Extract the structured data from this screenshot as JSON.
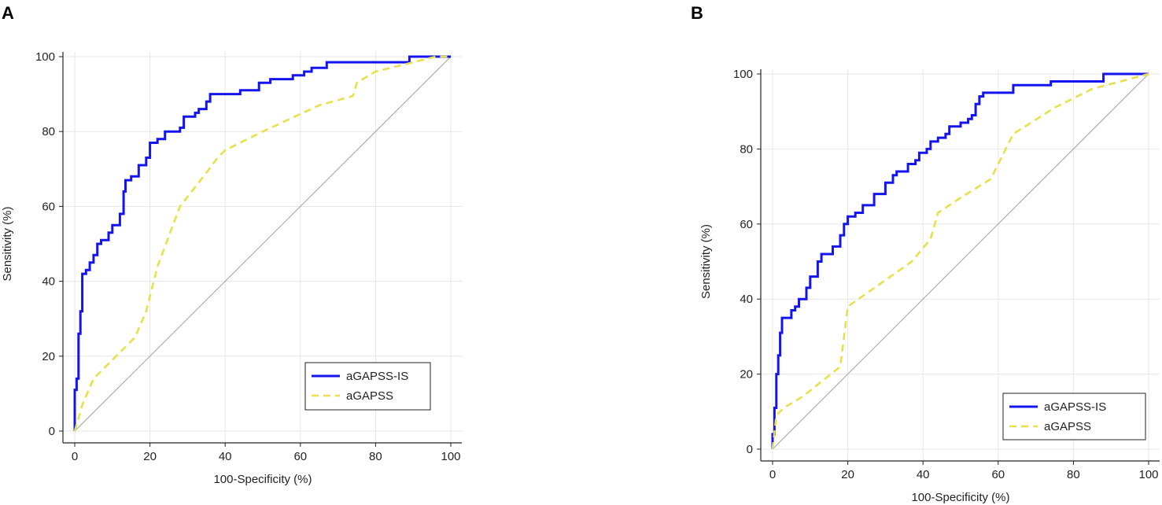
{
  "chart_data": [
    {
      "panel": "A",
      "type": "line",
      "title": "",
      "xlabel": "100-Specificity (%)",
      "ylabel": "Sensitivity (%)",
      "xlim": [
        0,
        100
      ],
      "ylim": [
        0,
        100
      ],
      "xticks": [
        0,
        20,
        40,
        60,
        80,
        100
      ],
      "yticks": [
        0,
        20,
        40,
        60,
        80,
        100
      ],
      "grid": true,
      "legend_position": "bottom-right",
      "reference_line": "diagonal",
      "series": [
        {
          "name": "aGAPSS-IS",
          "color": "#1414f0",
          "style": "solid",
          "points": [
            [
              0,
              0
            ],
            [
              0,
              11
            ],
            [
              0.5,
              11
            ],
            [
              0.5,
              14
            ],
            [
              1,
              14
            ],
            [
              1,
              26
            ],
            [
              1.5,
              26
            ],
            [
              1.5,
              32
            ],
            [
              2,
              32
            ],
            [
              2,
              42
            ],
            [
              3,
              42
            ],
            [
              3,
              43
            ],
            [
              4,
              43
            ],
            [
              4,
              45
            ],
            [
              5,
              45
            ],
            [
              5,
              47
            ],
            [
              6,
              47
            ],
            [
              6,
              50
            ],
            [
              7,
              50
            ],
            [
              7,
              51
            ],
            [
              9,
              51
            ],
            [
              9,
              53
            ],
            [
              10,
              53
            ],
            [
              10,
              55
            ],
            [
              12,
              55
            ],
            [
              12,
              58
            ],
            [
              13,
              58
            ],
            [
              13,
              64
            ],
            [
              13.5,
              64
            ],
            [
              13.5,
              67
            ],
            [
              15,
              67
            ],
            [
              15,
              68
            ],
            [
              17,
              68
            ],
            [
              17,
              71
            ],
            [
              19,
              71
            ],
            [
              19,
              73
            ],
            [
              20,
              73
            ],
            [
              20,
              77
            ],
            [
              22,
              77
            ],
            [
              22,
              78
            ],
            [
              24,
              78
            ],
            [
              24,
              80
            ],
            [
              28,
              80
            ],
            [
              28,
              81
            ],
            [
              29,
              81
            ],
            [
              29,
              84
            ],
            [
              32,
              84
            ],
            [
              32,
              85
            ],
            [
              33,
              85
            ],
            [
              33,
              86
            ],
            [
              35,
              86
            ],
            [
              35,
              88
            ],
            [
              36,
              88
            ],
            [
              36,
              90
            ],
            [
              44,
              90
            ],
            [
              44,
              91
            ],
            [
              49,
              91
            ],
            [
              49,
              93
            ],
            [
              52,
              93
            ],
            [
              52,
              94
            ],
            [
              58,
              94
            ],
            [
              58,
              95
            ],
            [
              61,
              95
            ],
            [
              61,
              96
            ],
            [
              63,
              96
            ],
            [
              63,
              97
            ],
            [
              67,
              97
            ],
            [
              67,
              98.5
            ],
            [
              89,
              98.5
            ],
            [
              89,
              100
            ],
            [
              100,
              100
            ]
          ]
        },
        {
          "name": "aGAPSS",
          "color": "#e8e04a",
          "style": "dashed",
          "points": [
            [
              0,
              0
            ],
            [
              2,
              7
            ],
            [
              5,
              14
            ],
            [
              10,
              19
            ],
            [
              16,
              25
            ],
            [
              19,
              32
            ],
            [
              22,
              44
            ],
            [
              28,
              60
            ],
            [
              35,
              69
            ],
            [
              38,
              73
            ],
            [
              40,
              75
            ],
            [
              50,
              80
            ],
            [
              65,
              87
            ],
            [
              74,
              89.5
            ],
            [
              75,
              93
            ],
            [
              80,
              96
            ],
            [
              96,
              100
            ],
            [
              100,
              100
            ]
          ]
        }
      ]
    },
    {
      "panel": "B",
      "type": "line",
      "title": "",
      "xlabel": "100-Specificity (%)",
      "ylabel": "Sensitivity (%)",
      "xlim": [
        0,
        100
      ],
      "ylim": [
        0,
        100
      ],
      "xticks": [
        0,
        20,
        40,
        60,
        80,
        100
      ],
      "yticks": [
        0,
        20,
        40,
        60,
        80,
        100
      ],
      "grid": true,
      "legend_position": "bottom-right",
      "reference_line": "diagonal",
      "series": [
        {
          "name": "aGAPSS-IS",
          "color": "#1414f0",
          "style": "solid",
          "points": [
            [
              0,
              0
            ],
            [
              0,
              4
            ],
            [
              0.5,
              4
            ],
            [
              0.5,
              11
            ],
            [
              1,
              11
            ],
            [
              1,
              20
            ],
            [
              1.5,
              20
            ],
            [
              1.5,
              25
            ],
            [
              2,
              25
            ],
            [
              2,
              31
            ],
            [
              2.5,
              31
            ],
            [
              2.5,
              35
            ],
            [
              5,
              35
            ],
            [
              5,
              37
            ],
            [
              6,
              37
            ],
            [
              6,
              38
            ],
            [
              7,
              38
            ],
            [
              7,
              40
            ],
            [
              9,
              40
            ],
            [
              9,
              43
            ],
            [
              10,
              43
            ],
            [
              10,
              46
            ],
            [
              12,
              46
            ],
            [
              12,
              50
            ],
            [
              13,
              50
            ],
            [
              13,
              52
            ],
            [
              16,
              52
            ],
            [
              16,
              54
            ],
            [
              18,
              54
            ],
            [
              18,
              57
            ],
            [
              19,
              57
            ],
            [
              19,
              60
            ],
            [
              20,
              60
            ],
            [
              20,
              62
            ],
            [
              22,
              62
            ],
            [
              22,
              63
            ],
            [
              24,
              63
            ],
            [
              24,
              65
            ],
            [
              27,
              65
            ],
            [
              27,
              68
            ],
            [
              30,
              68
            ],
            [
              30,
              71
            ],
            [
              32,
              71
            ],
            [
              32,
              73
            ],
            [
              33,
              73
            ],
            [
              33,
              74
            ],
            [
              36,
              74
            ],
            [
              36,
              76
            ],
            [
              38,
              76
            ],
            [
              38,
              77
            ],
            [
              39,
              77
            ],
            [
              39,
              79
            ],
            [
              41,
              79
            ],
            [
              41,
              80
            ],
            [
              42,
              80
            ],
            [
              42,
              82
            ],
            [
              44,
              82
            ],
            [
              44,
              83
            ],
            [
              46,
              83
            ],
            [
              46,
              84
            ],
            [
              47,
              84
            ],
            [
              47,
              86
            ],
            [
              50,
              86
            ],
            [
              50,
              87
            ],
            [
              52,
              87
            ],
            [
              52,
              88
            ],
            [
              53,
              88
            ],
            [
              53,
              89
            ],
            [
              54,
              89
            ],
            [
              54,
              92
            ],
            [
              55,
              92
            ],
            [
              55,
              94
            ],
            [
              56,
              94
            ],
            [
              56,
              95
            ],
            [
              64,
              95
            ],
            [
              64,
              97
            ],
            [
              74,
              97
            ],
            [
              74,
              98
            ],
            [
              88,
              98
            ],
            [
              88,
              100
            ],
            [
              100,
              100
            ]
          ]
        },
        {
          "name": "aGAPSS",
          "color": "#e8e04a",
          "style": "dashed",
          "points": [
            [
              0,
              0
            ],
            [
              1,
              9
            ],
            [
              3,
              11
            ],
            [
              8,
              14
            ],
            [
              18,
              22
            ],
            [
              20,
              38
            ],
            [
              37,
              50
            ],
            [
              42,
              56
            ],
            [
              44,
              63
            ],
            [
              50,
              67
            ],
            [
              58,
              72
            ],
            [
              64,
              84
            ],
            [
              75,
              91
            ],
            [
              85,
              96
            ],
            [
              100,
              100
            ]
          ]
        }
      ]
    }
  ]
}
